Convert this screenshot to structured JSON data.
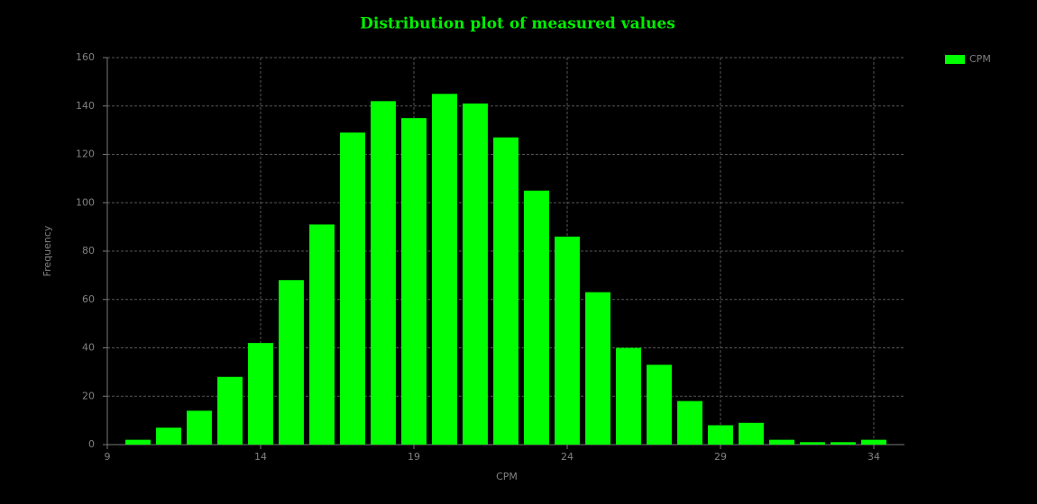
{
  "chart_data": {
    "type": "bar",
    "title": "Distribution plot of measured values",
    "x_label": "CPM",
    "y_label": "Frequency",
    "x": [
      10,
      11,
      12,
      13,
      14,
      15,
      16,
      17,
      18,
      19,
      20,
      21,
      22,
      23,
      24,
      25,
      26,
      27,
      28,
      29,
      30,
      31,
      32,
      33,
      34
    ],
    "series": [
      {
        "name": "CPM",
        "color": "#00ff00",
        "values": [
          2,
          7,
          14,
          28,
          42,
          68,
          91,
          129,
          142,
          135,
          145,
          141,
          127,
          105,
          86,
          63,
          40,
          33,
          18,
          8,
          9,
          2,
          1,
          1,
          2
        ]
      }
    ],
    "xlim": [
      9,
      35
    ],
    "xticks": [
      9,
      14,
      19,
      24,
      29,
      34
    ],
    "ylim": [
      0,
      160
    ],
    "yticks": [
      0,
      20,
      40,
      60,
      80,
      100,
      120,
      140,
      160
    ],
    "grid": true,
    "legend": "top-right"
  }
}
